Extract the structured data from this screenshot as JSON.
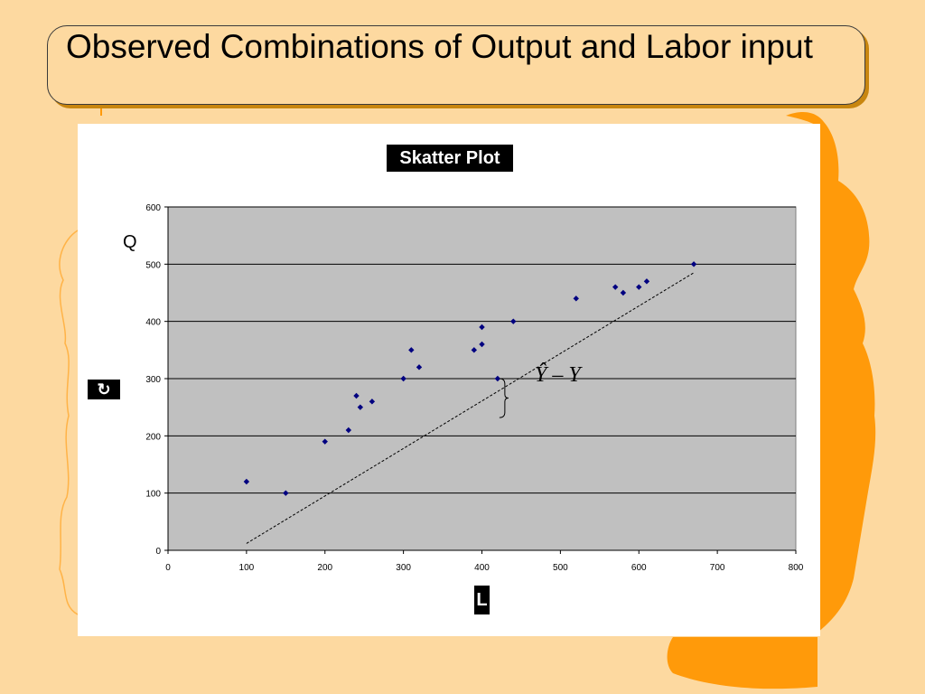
{
  "slide": {
    "title": "Observed Combinations of Output and Labor input"
  },
  "colors": {
    "background": "#FDD9A0",
    "plot_area": "#C0C0C0",
    "marker": "#000080",
    "silhouette": "#FF9A0A"
  },
  "chart_data": {
    "type": "scatter",
    "title": "Skatter Plot",
    "xlabel": "L",
    "ylabel": "Q",
    "xlim": [
      0,
      800
    ],
    "ylim": [
      0,
      600
    ],
    "xticks": [
      0,
      100,
      200,
      300,
      400,
      500,
      600,
      700,
      800
    ],
    "yticks": [
      0,
      100,
      200,
      300,
      400,
      500,
      600
    ],
    "grid": "horizontal",
    "points": [
      [
        100,
        120
      ],
      [
        150,
        100
      ],
      [
        200,
        190
      ],
      [
        230,
        210
      ],
      [
        240,
        270
      ],
      [
        245,
        250
      ],
      [
        260,
        260
      ],
      [
        300,
        300
      ],
      [
        310,
        350
      ],
      [
        320,
        320
      ],
      [
        390,
        350
      ],
      [
        400,
        360
      ],
      [
        400,
        390
      ],
      [
        420,
        300
      ],
      [
        440,
        400
      ],
      [
        520,
        440
      ],
      [
        570,
        460
      ],
      [
        580,
        450
      ],
      [
        600,
        460
      ],
      [
        610,
        470
      ],
      [
        670,
        500
      ]
    ],
    "fit_line": [
      [
        100,
        12
      ],
      [
        670,
        485
      ]
    ],
    "annotation": "Ŷ – Y"
  },
  "icons": {
    "corner_icon": "refresh-icon"
  }
}
